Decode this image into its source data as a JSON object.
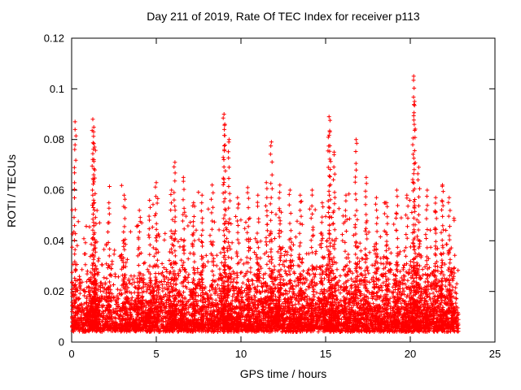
{
  "chart_data": {
    "type": "scatter",
    "title": "Day 211 of 2019, Rate Of TEC Index for receiver p113",
    "xlabel": "GPS time / hours",
    "ylabel": "ROTI / TECUs",
    "xlim": [
      0,
      25
    ],
    "ylim": [
      0,
      0.12
    ],
    "grid": false,
    "legend": "none",
    "marker": "plus",
    "marker_color": "#ff0000",
    "axis_color": "#000000",
    "background": "#ffffff",
    "xticks": [
      {
        "v": 0,
        "label": "0"
      },
      {
        "v": 5,
        "label": "5"
      },
      {
        "v": 10,
        "label": "10"
      },
      {
        "v": 15,
        "label": "15"
      },
      {
        "v": 20,
        "label": "20"
      },
      {
        "v": 25,
        "label": "25"
      }
    ],
    "yticks": [
      {
        "v": 0,
        "label": "0"
      },
      {
        "v": 0.02,
        "label": "0.02"
      },
      {
        "v": 0.04,
        "label": "0.04"
      },
      {
        "v": 0.06,
        "label": "0.06"
      },
      {
        "v": 0.08,
        "label": "0.08"
      },
      {
        "v": 0.1,
        "label": "0.1"
      },
      {
        "v": 0.12,
        "label": "0.12"
      }
    ],
    "x_data_range": [
      0.03,
      22.85
    ],
    "description": "Dense noise floor of ROTI values mostly 0.004-0.03 TECUs across 0-22.8 h, thinning density up to ~0.06, with vertical spike clusters; maximum spike ~0.105 near 20.2 h.",
    "noise": {
      "seed": 211,
      "n_dense_uniform": 4500,
      "n_dense_clustered": 2000,
      "n_mid": 650,
      "base_dense": 0.004,
      "scale_dense": 0.008,
      "cap_dense": 0.052,
      "base_mid": 0.012,
      "scale_mid": 0.013,
      "cap_mid": 0.062
    },
    "peaks": [
      {
        "x": 0.2,
        "ymax": 0.087
      },
      {
        "x": 1.25,
        "ymax": 0.088
      },
      {
        "x": 1.3,
        "ymax": 0.083
      },
      {
        "x": 1.35,
        "ymax": 0.077
      },
      {
        "x": 2.2,
        "ymax": 0.055
      },
      {
        "x": 3.1,
        "ymax": 0.058
      },
      {
        "x": 4.0,
        "ymax": 0.052
      },
      {
        "x": 4.6,
        "ymax": 0.056
      },
      {
        "x": 5.0,
        "ymax": 0.063
      },
      {
        "x": 5.9,
        "ymax": 0.06
      },
      {
        "x": 6.1,
        "ymax": 0.071
      },
      {
        "x": 6.6,
        "ymax": 0.065
      },
      {
        "x": 7.2,
        "ymax": 0.055
      },
      {
        "x": 7.7,
        "ymax": 0.058
      },
      {
        "x": 8.3,
        "ymax": 0.062
      },
      {
        "x": 9.0,
        "ymax": 0.09
      },
      {
        "x": 9.05,
        "ymax": 0.086
      },
      {
        "x": 9.3,
        "ymax": 0.08
      },
      {
        "x": 9.8,
        "ymax": 0.057
      },
      {
        "x": 10.4,
        "ymax": 0.061
      },
      {
        "x": 11.0,
        "ymax": 0.058
      },
      {
        "x": 11.5,
        "ymax": 0.063
      },
      {
        "x": 11.8,
        "ymax": 0.079
      },
      {
        "x": 12.3,
        "ymax": 0.062
      },
      {
        "x": 12.9,
        "ymax": 0.06
      },
      {
        "x": 13.5,
        "ymax": 0.058
      },
      {
        "x": 14.2,
        "ymax": 0.06
      },
      {
        "x": 14.8,
        "ymax": 0.055
      },
      {
        "x": 15.2,
        "ymax": 0.089
      },
      {
        "x": 15.25,
        "ymax": 0.083
      },
      {
        "x": 15.5,
        "ymax": 0.075
      },
      {
        "x": 16.2,
        "ymax": 0.058
      },
      {
        "x": 16.8,
        "ymax": 0.08
      },
      {
        "x": 17.4,
        "ymax": 0.065
      },
      {
        "x": 18.0,
        "ymax": 0.057
      },
      {
        "x": 18.6,
        "ymax": 0.055
      },
      {
        "x": 19.2,
        "ymax": 0.06
      },
      {
        "x": 19.8,
        "ymax": 0.058
      },
      {
        "x": 20.2,
        "ymax": 0.105
      },
      {
        "x": 20.25,
        "ymax": 0.095
      },
      {
        "x": 20.5,
        "ymax": 0.069
      },
      {
        "x": 21.0,
        "ymax": 0.06
      },
      {
        "x": 21.5,
        "ymax": 0.057
      },
      {
        "x": 21.9,
        "ymax": 0.062
      },
      {
        "x": 22.3,
        "ymax": 0.057
      }
    ]
  }
}
